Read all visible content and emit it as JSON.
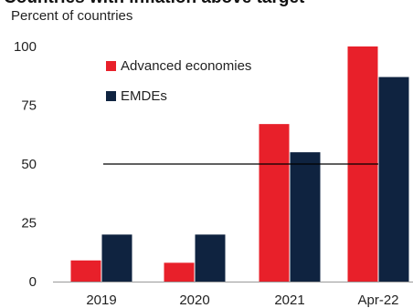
{
  "chart_data": {
    "type": "bar",
    "title": "Countries with inflation above target",
    "ylabel": "Percent of countries",
    "xlabel": "",
    "categories": [
      "2019",
      "2020",
      "2021",
      "Apr-22"
    ],
    "series": [
      {
        "name": "Advanced economies",
        "color": "#e8202a",
        "values": [
          9,
          8,
          67,
          100
        ]
      },
      {
        "name": "EMDEs",
        "color": "#0f2340",
        "values": [
          20,
          20,
          55,
          87
        ]
      }
    ],
    "ylim": [
      0,
      100
    ],
    "yticks": [
      0,
      25,
      50,
      75,
      100
    ],
    "reference_line": {
      "value": 50,
      "color": "#000000"
    },
    "grid": false,
    "legend_position": "top-left"
  }
}
